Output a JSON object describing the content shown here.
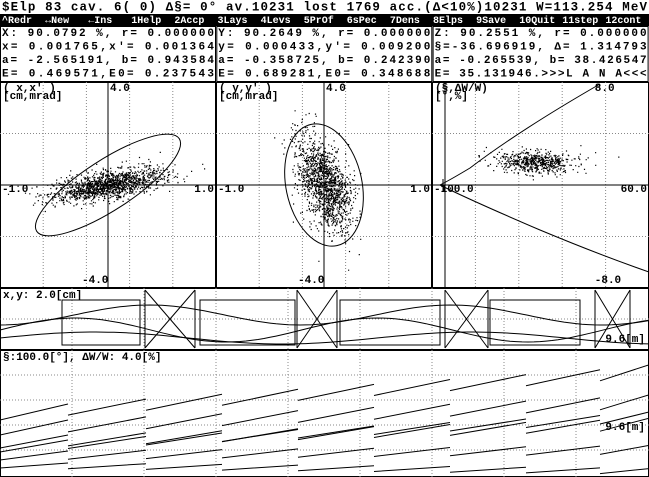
{
  "header": {
    "status": "$Elp  83 cav.  6( 0) ∆§=   0° av.10231 lost 1769 acc.(∆<10%)10231 W=113.254 MeV"
  },
  "menu": [
    "^Redr",
    "↔New",
    "←Ins",
    "1Help",
    "2Accp",
    "3Lays",
    "4Levs",
    "5PrOf",
    "6sPec",
    "7Dens",
    "8Elps",
    "9Save",
    "10Quit",
    "11step",
    "12cont"
  ],
  "info": [
    [
      "X: 90.0792 %, r=   0.000000",
      "x=  0.001765,x'=   0.001364",
      "a= -2.565191, b=   0.943584",
      "E=  0.469571,E0=   0.237543"
    ],
    [
      "Y: 90.2649 %, r=   0.000000",
      "y=  0.000433,y'=   0.009200",
      "a= -0.358725, b=   0.242390",
      "E=  0.689281,E0=   0.348688"
    ],
    [
      "Z: 90.2551 %, r=   0.000000",
      "§=-36.696919, ∆=   1.314793",
      "a= -0.265539, b=  38.426547",
      "E= 35.131946.>>>L A N A<<<"
    ]
  ],
  "plots": [
    {
      "title": "( x,x' )",
      "units": "[cm,mrad]",
      "top": "4.0",
      "bottom": "-4.0",
      "left": "-1.0",
      "right": "1.0"
    },
    {
      "title": "( y,y' )",
      "units": "[cm,mrad]",
      "top": "4.0",
      "bottom": "-4.0",
      "left": "-1.0",
      "right": "1.0"
    },
    {
      "title": "(§,∆W/W)",
      "units": "[°,%]",
      "top": "8.0",
      "bottom": "-8.0",
      "left": "-100.0",
      "right": "60.0"
    }
  ],
  "envelope": {
    "label": "x,y: 2.0[cm]",
    "length": "9.6[m]"
  },
  "phase": {
    "label": "§:100.0[°],   ∆W/W:  4.0[%]",
    "length": "9.6[m]"
  }
}
